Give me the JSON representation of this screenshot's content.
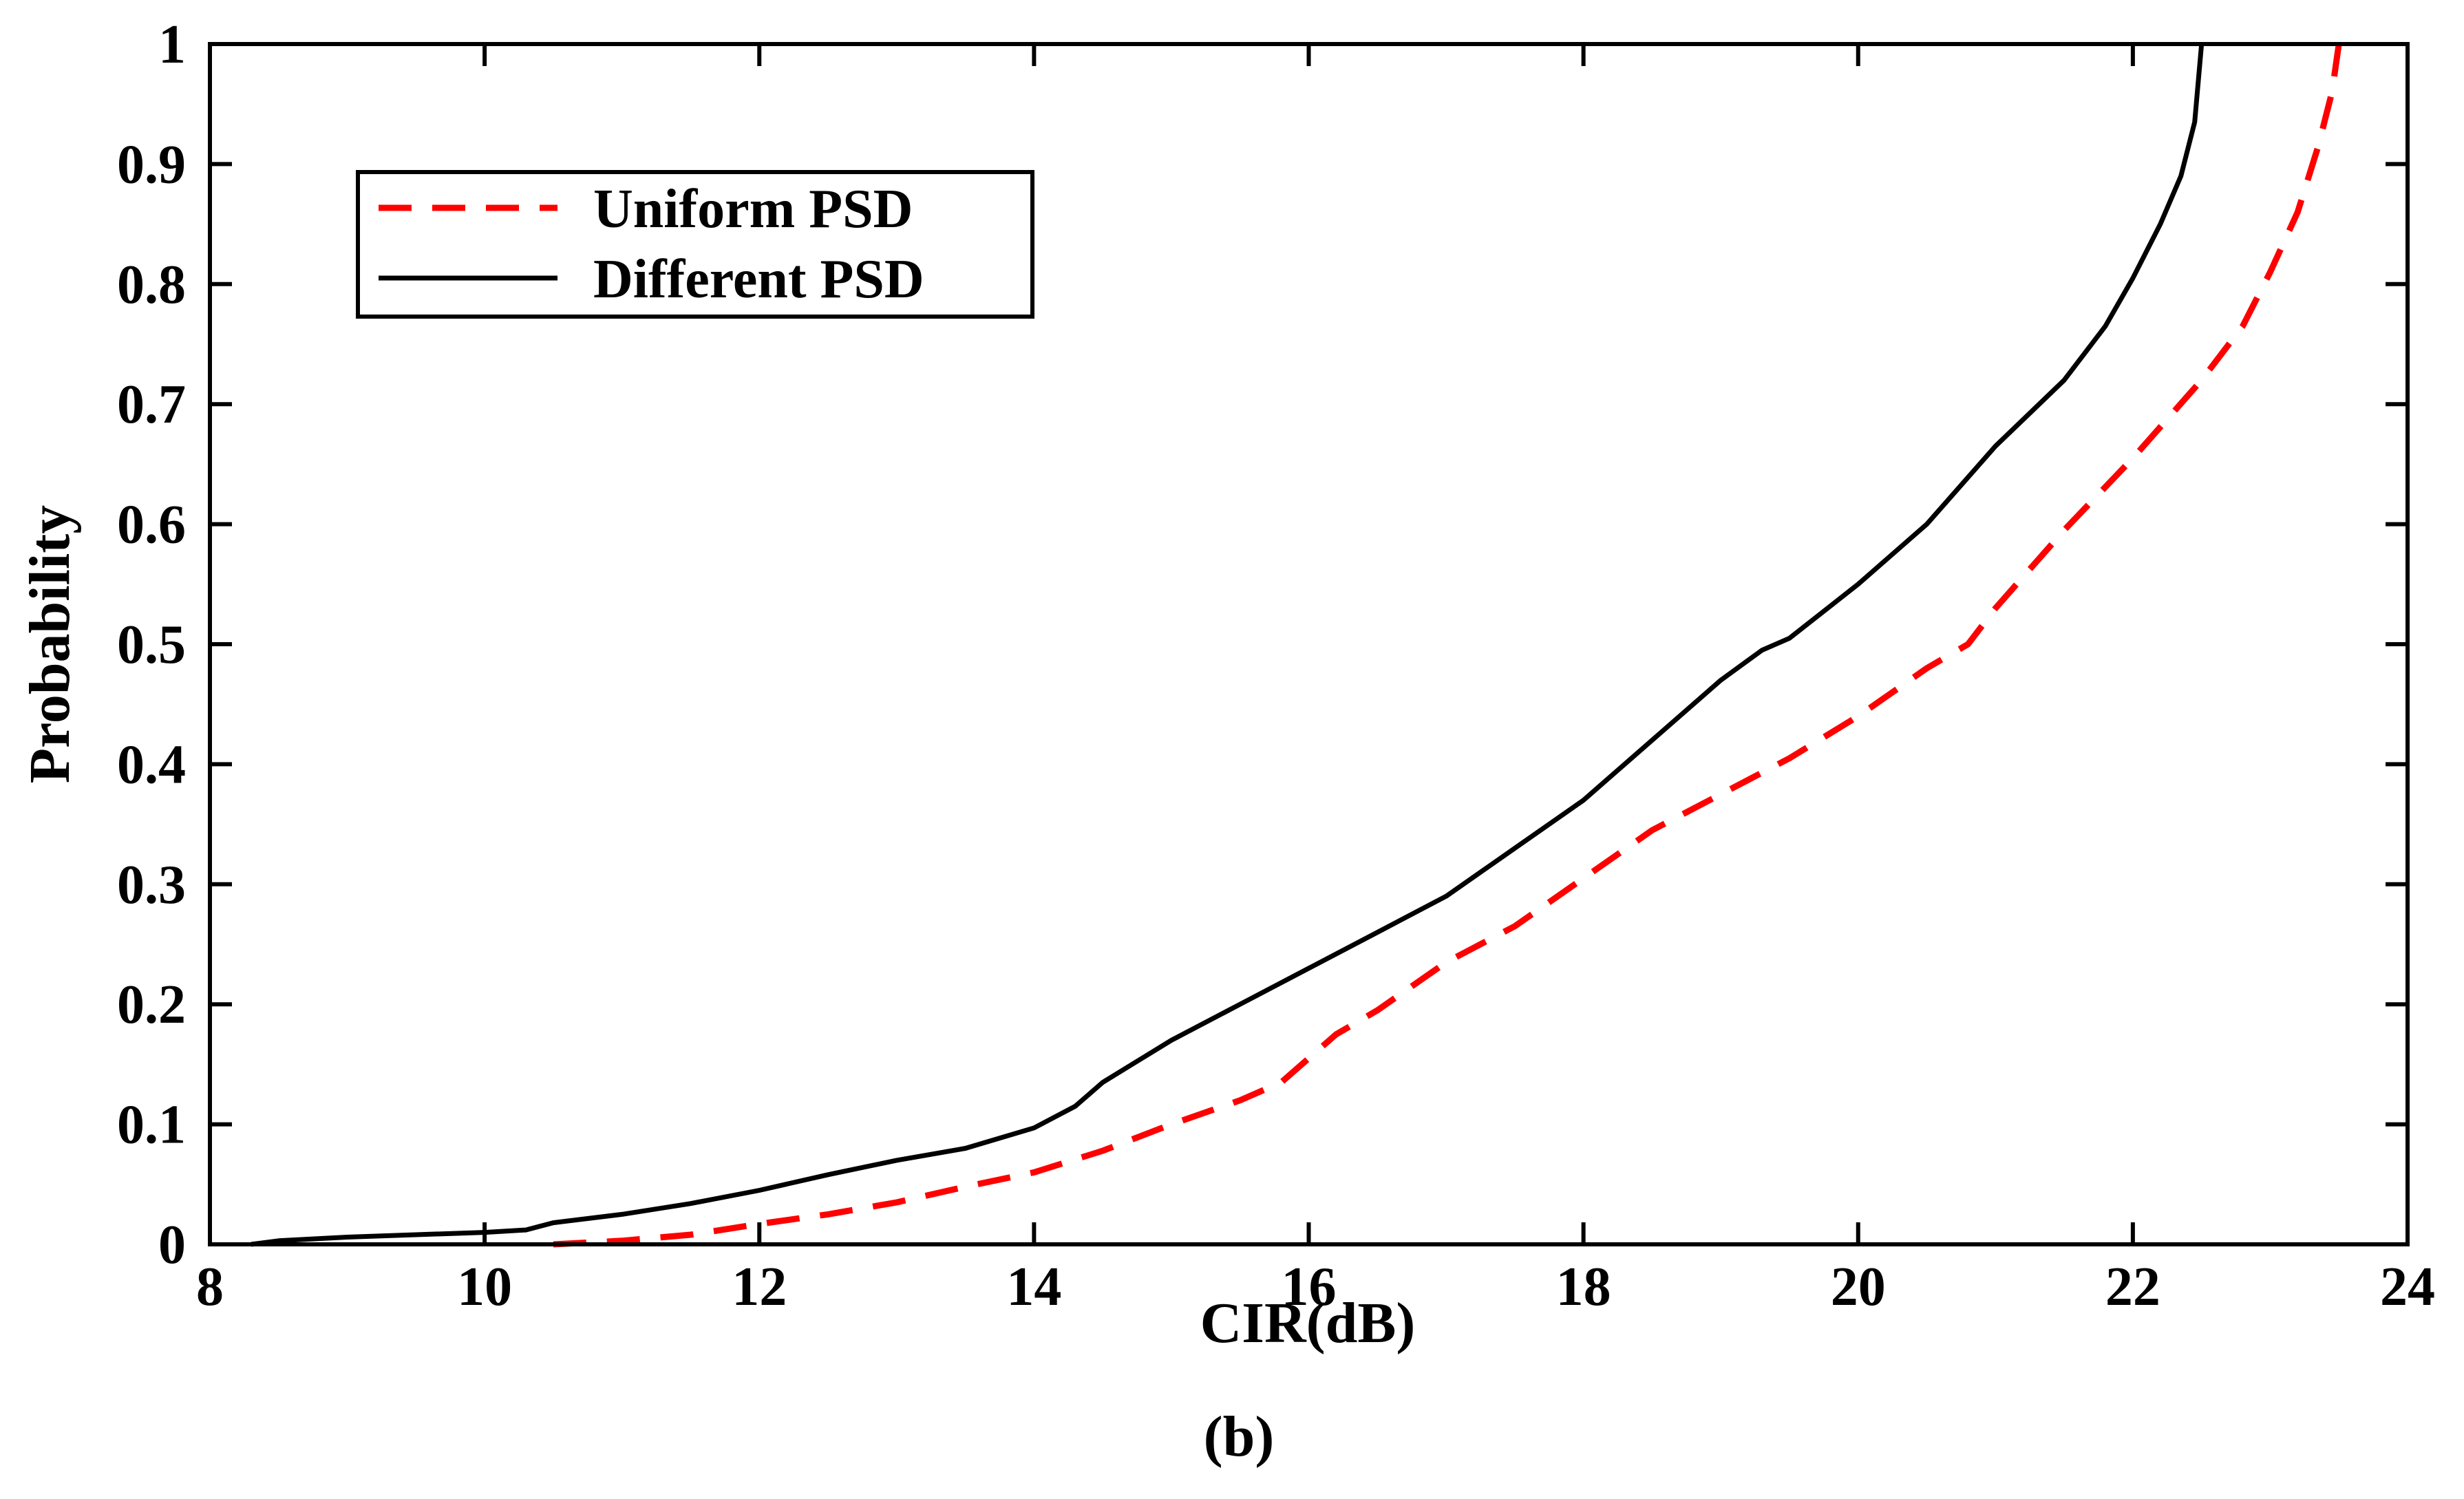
{
  "chart_data": {
    "type": "line",
    "title": "",
    "caption": "(b)",
    "xlabel": "CIR(dB)",
    "ylabel": "Probability",
    "xlim": [
      8,
      24
    ],
    "ylim": [
      0,
      1
    ],
    "x_ticks": [
      8,
      10,
      12,
      14,
      16,
      18,
      20,
      22,
      24
    ],
    "x_tick_labels": [
      "8",
      "10",
      "12",
      "14",
      "16",
      "18",
      "20",
      "22",
      "24"
    ],
    "y_ticks": [
      0,
      0.1,
      0.2,
      0.3,
      0.4,
      0.5,
      0.6,
      0.7,
      0.8,
      0.9,
      1
    ],
    "y_tick_labels": [
      "0",
      "0.1",
      "0.2",
      "0.3",
      "0.4",
      "0.5",
      "0.6",
      "0.7",
      "0.8",
      "0.9",
      "1"
    ],
    "grid": false,
    "legend_position": "top-left",
    "series": [
      {
        "name": "Uniform PSD",
        "color": "#ff0000",
        "style": "dashed",
        "x": [
          10.5,
          11.0,
          11.5,
          12.0,
          12.5,
          13.0,
          13.5,
          14.0,
          14.5,
          15.0,
          15.5,
          15.8,
          16.0,
          16.2,
          16.5,
          17.0,
          17.5,
          18.0,
          18.5,
          19.0,
          19.5,
          20.0,
          20.5,
          20.8,
          21.0,
          21.5,
          22.0,
          22.5,
          22.8,
          23.0,
          23.2,
          23.35,
          23.45,
          23.5
        ],
        "y": [
          0.0,
          0.003,
          0.008,
          0.017,
          0.025,
          0.035,
          0.048,
          0.06,
          0.078,
          0.1,
          0.12,
          0.135,
          0.155,
          0.175,
          0.195,
          0.235,
          0.265,
          0.305,
          0.345,
          0.375,
          0.405,
          0.44,
          0.48,
          0.5,
          0.53,
          0.595,
          0.655,
          0.72,
          0.765,
          0.81,
          0.86,
          0.915,
          0.96,
          1.0
        ]
      },
      {
        "name": "Different PSD",
        "color": "#000000",
        "style": "solid",
        "x": [
          8.3,
          8.5,
          9.0,
          9.5,
          10.0,
          10.3,
          10.5,
          11.0,
          11.5,
          12.0,
          12.5,
          13.0,
          13.5,
          14.0,
          14.3,
          14.5,
          15.0,
          15.5,
          16.0,
          16.5,
          17.0,
          17.5,
          18.0,
          18.5,
          19.0,
          19.3,
          19.5,
          20.0,
          20.5,
          21.0,
          21.5,
          21.8,
          22.0,
          22.2,
          22.35,
          22.45,
          22.5
        ],
        "y": [
          0.0,
          0.003,
          0.006,
          0.008,
          0.01,
          0.012,
          0.018,
          0.025,
          0.034,
          0.045,
          0.058,
          0.07,
          0.08,
          0.097,
          0.115,
          0.135,
          0.17,
          0.2,
          0.23,
          0.26,
          0.29,
          0.33,
          0.37,
          0.42,
          0.47,
          0.495,
          0.505,
          0.55,
          0.6,
          0.665,
          0.72,
          0.765,
          0.805,
          0.85,
          0.89,
          0.935,
          1.0
        ]
      }
    ]
  }
}
